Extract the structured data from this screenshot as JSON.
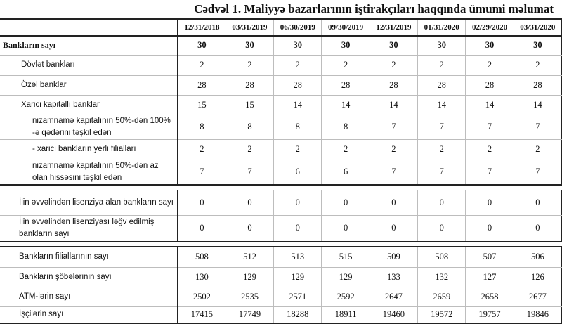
{
  "title": "Cədvəl 1. Maliyyə bazarlarının iştirakçıları haqqında ümumi məlumat",
  "columns": [
    "12/31/2018",
    "03/31/2019",
    "06/30/2019",
    "09/30/2019",
    "12/31/2019",
    "01/31/2020",
    "02/29/2020",
    "03/31/2020"
  ],
  "groups": [
    {
      "rows": [
        {
          "label": "Bankların sayı",
          "level": 0,
          "bold": true,
          "values": [
            30,
            30,
            30,
            30,
            30,
            30,
            30,
            30
          ]
        },
        {
          "label": "Dövlət bankları",
          "level": 1,
          "values": [
            2,
            2,
            2,
            2,
            2,
            2,
            2,
            2
          ]
        },
        {
          "label": "Özəl banklar",
          "level": 1,
          "values": [
            28,
            28,
            28,
            28,
            28,
            28,
            28,
            28
          ]
        },
        {
          "label": "Xarici kapitallı banklar",
          "level": 1,
          "values": [
            15,
            15,
            14,
            14,
            14,
            14,
            14,
            14
          ]
        },
        {
          "label": "nizamnamə kapitalının 50%-dən 100% -ə qədərini təşkil edən",
          "level": 2,
          "values": [
            8,
            8,
            8,
            8,
            7,
            7,
            7,
            7
          ]
        },
        {
          "label": " -  xarici bankların yerli filialları",
          "level": 2,
          "values": [
            2,
            2,
            2,
            2,
            2,
            2,
            2,
            2
          ]
        },
        {
          "label": "nizamnamə kapitalının 50%-dən az olan hissəsini  təşkil edən",
          "level": 2,
          "values": [
            7,
            7,
            6,
            6,
            7,
            7,
            7,
            7
          ]
        }
      ]
    },
    {
      "rows": [
        {
          "label": "İlin əvvəlindən lisenziya alan bankların sayı",
          "level": 1,
          "values": [
            0,
            0,
            0,
            0,
            0,
            0,
            0,
            0
          ]
        },
        {
          "label": "İlin əvvəlindən lisenziyası ləğv edilmiş bankların sayı",
          "level": 1,
          "values": [
            0,
            0,
            0,
            0,
            0,
            0,
            0,
            0
          ]
        }
      ]
    },
    {
      "rows": [
        {
          "label": "Bankların filiallarının sayı",
          "level": 1,
          "values": [
            508,
            512,
            513,
            515,
            509,
            508,
            507,
            506
          ]
        },
        {
          "label": "Bankların şöbələrinin sayı",
          "level": 1,
          "values": [
            130,
            129,
            129,
            129,
            133,
            132,
            127,
            126
          ]
        },
        {
          "label": "ATM-lərin sayı",
          "level": 1,
          "values": [
            2502,
            2535,
            2571,
            2592,
            2647,
            2659,
            2658,
            2677
          ]
        },
        {
          "label": "İşçilərin sayı",
          "level": 1,
          "values": [
            17415,
            17749,
            18288,
            18911,
            19460,
            19572,
            19757,
            19846
          ]
        }
      ]
    }
  ]
}
